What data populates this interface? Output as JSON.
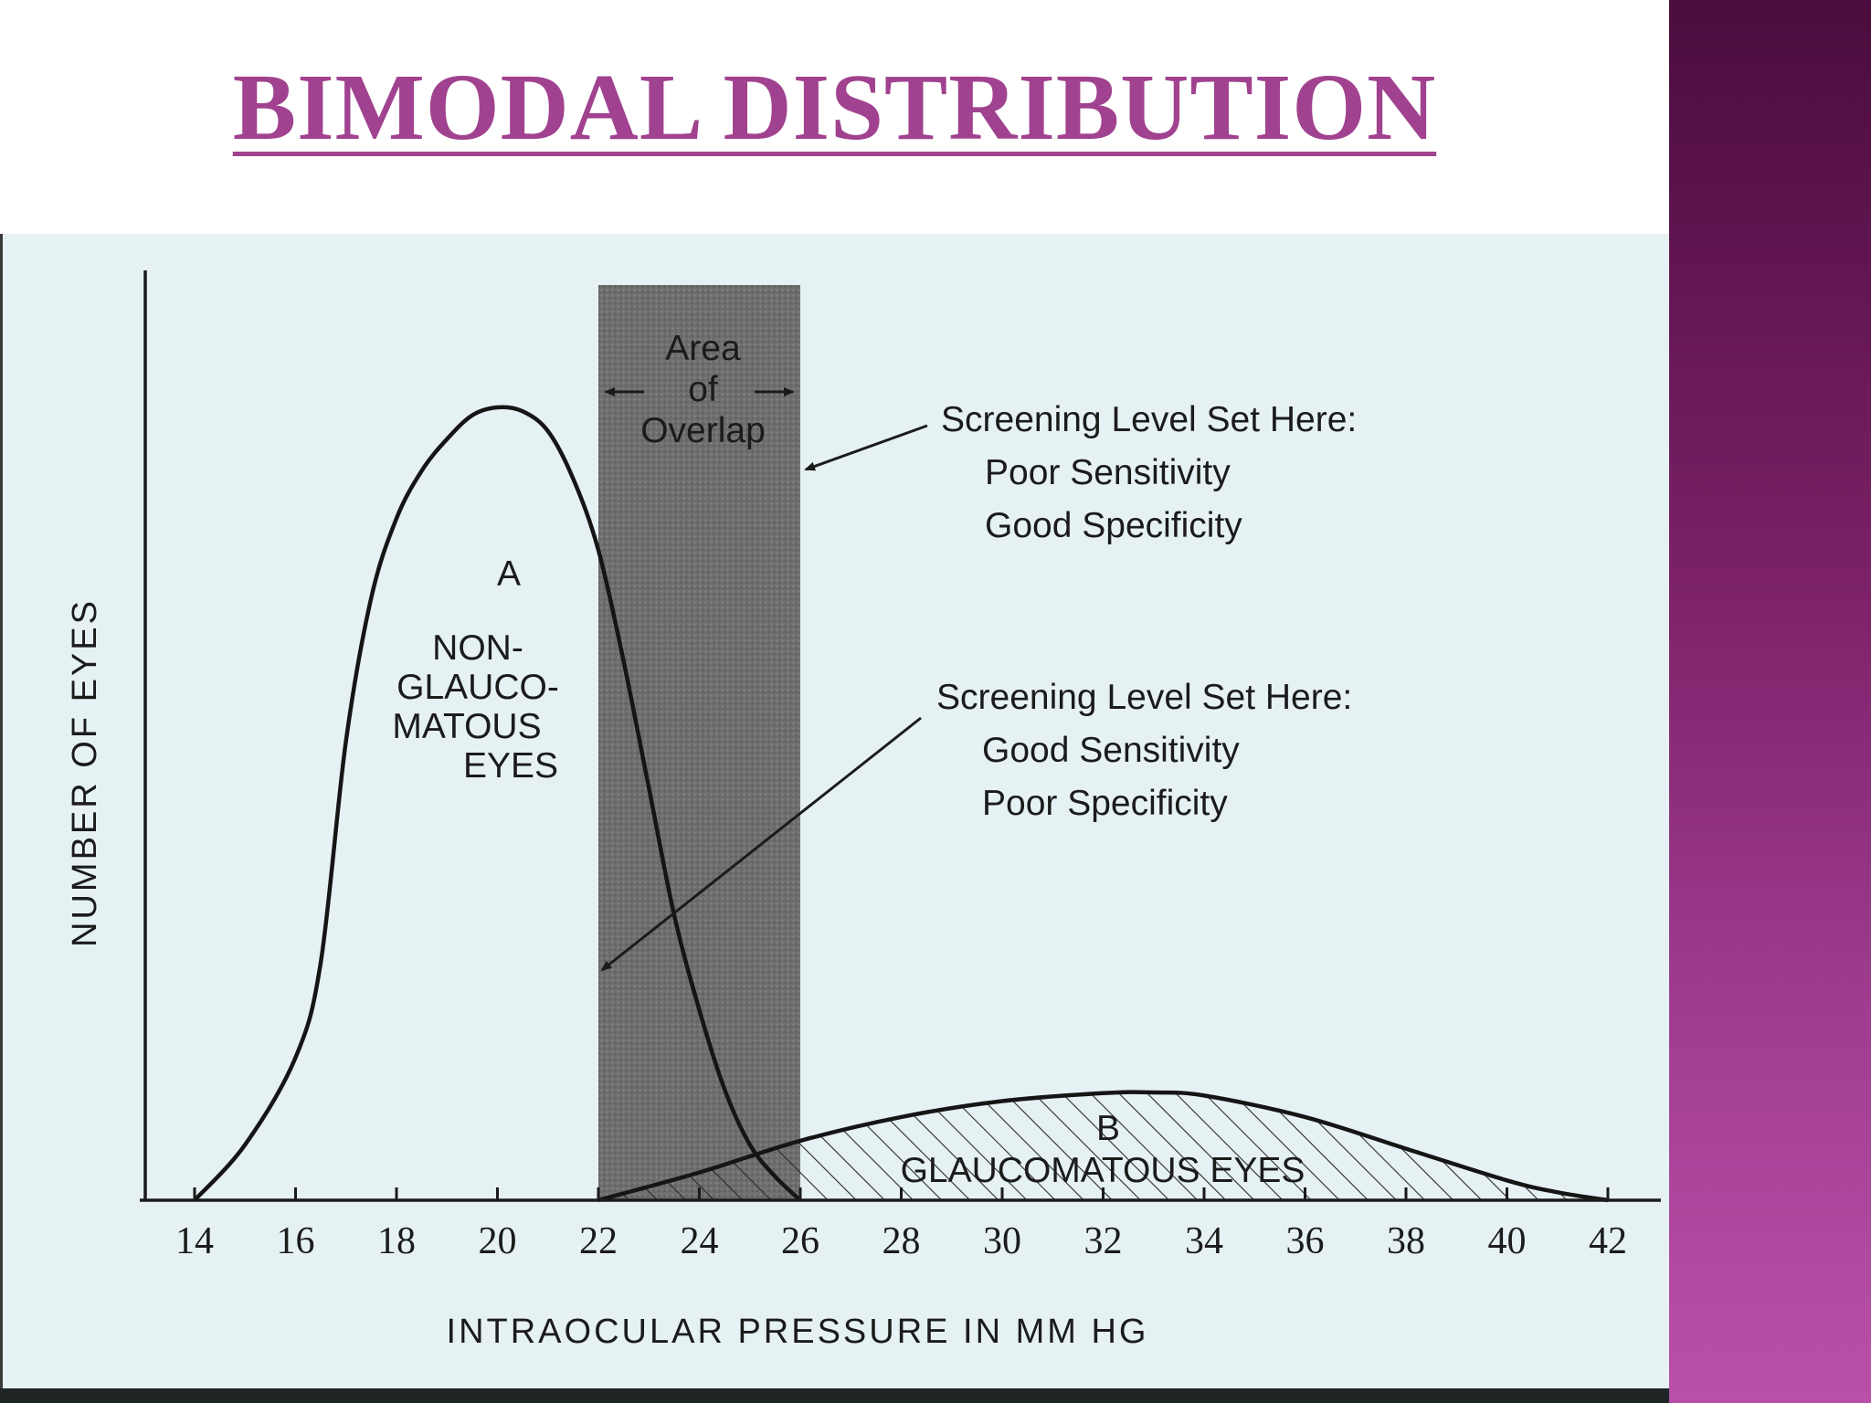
{
  "slide": {
    "title": "BIMODAL DISTRIBUTION",
    "accent_color": "#a0428f",
    "side_band_colors": [
      "#4a0c3d",
      "#b950a8"
    ]
  },
  "chart_data": {
    "type": "area",
    "xlabel": "INTRAOCULAR PRESSURE IN MM HG",
    "ylabel": "NUMBER OF EYES",
    "x_ticks": [
      "14",
      "16",
      "18",
      "20",
      "22",
      "24",
      "26",
      "28",
      "30",
      "32",
      "34",
      "36",
      "38",
      "40",
      "42"
    ],
    "xlim": [
      14,
      42
    ],
    "ylim": [
      0,
      100
    ],
    "grid": false,
    "series": [
      {
        "name_lines": [
          "A",
          "NON-",
          "GLAUCO-",
          "MATOUS",
          "EYES"
        ],
        "fill": "none",
        "x": [
          14,
          15,
          16,
          16.5,
          17,
          17.5,
          18,
          18.5,
          19,
          19.5,
          20,
          20.5,
          21,
          21.5,
          22,
          22.5,
          23,
          23.5,
          24,
          24.5,
          25,
          25.5,
          26
        ],
        "y": [
          0,
          7,
          18,
          30,
          58,
          76,
          86,
          92,
          96,
          99,
          100,
          99.5,
          97,
          91,
          82,
          68,
          52,
          36,
          24,
          14,
          7,
          3,
          0
        ]
      },
      {
        "name_lines": [
          "B",
          "GLAUCOMATOUS  EYES"
        ],
        "fill": "hatched",
        "x": [
          22,
          24,
          26,
          28,
          30,
          32,
          33,
          34,
          36,
          38,
          40,
          41,
          42
        ],
        "y": [
          0,
          3.5,
          7.5,
          10.5,
          12.5,
          13.5,
          13.6,
          13.2,
          10.5,
          6.5,
          2.5,
          1,
          0
        ]
      }
    ],
    "overlap_region": {
      "x_range": [
        22,
        26
      ],
      "label_lines": [
        "Area",
        "of",
        "Overlap"
      ]
    },
    "annotations": [
      {
        "lines": [
          "Screening Level Set Here:",
          "Poor Sensitivity",
          "Good Specificity"
        ],
        "points_to_x": 26
      },
      {
        "lines": [
          "Screening Level Set Here:",
          "Good Sensitivity",
          "Poor Specificity"
        ],
        "points_to_x": 22
      }
    ]
  }
}
